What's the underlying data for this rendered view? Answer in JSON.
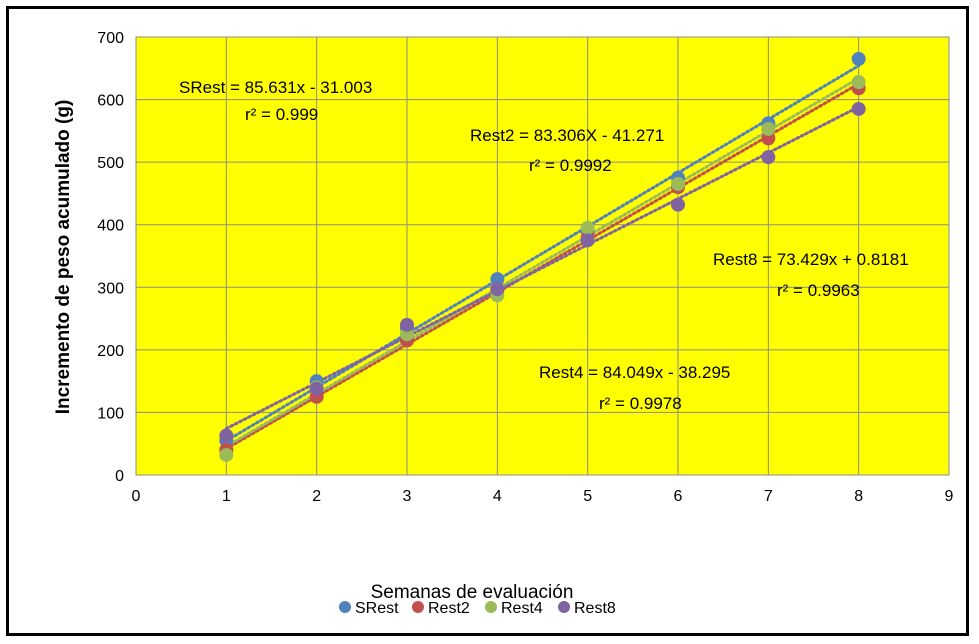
{
  "chart_data": {
    "type": "scatter",
    "title": "",
    "xlabel": "Semanas de evaluación",
    "ylabel": "Incremento de peso acumulado (g)",
    "xlim": [
      0,
      9
    ],
    "ylim": [
      0,
      700
    ],
    "xticks": [
      0,
      1,
      2,
      3,
      4,
      5,
      6,
      7,
      8,
      9
    ],
    "yticks": [
      0,
      100,
      200,
      300,
      400,
      500,
      600,
      700
    ],
    "grid": true,
    "plot_background": "#ffff00",
    "legend_position": "bottom",
    "series": [
      {
        "name": "SRest",
        "color": "#4f81bd",
        "x": [
          1,
          2,
          3,
          4,
          5,
          6,
          7,
          8
        ],
        "y": [
          55,
          150,
          235,
          313,
          390,
          475,
          562,
          665
        ],
        "trend": {
          "slope": 85.631,
          "intercept": -31.003
        }
      },
      {
        "name": "Rest2",
        "color": "#c0504d",
        "x": [
          1,
          2,
          3,
          4,
          5,
          6,
          7,
          8
        ],
        "y": [
          40,
          125,
          215,
          295,
          380,
          460,
          538,
          618
        ],
        "trend": {
          "slope": 83.306,
          "intercept": -41.271
        }
      },
      {
        "name": "Rest4",
        "color": "#9bbb59",
        "x": [
          1,
          2,
          3,
          4,
          5,
          6,
          7,
          8
        ],
        "y": [
          32,
          140,
          225,
          287,
          395,
          465,
          553,
          628
        ],
        "trend": {
          "slope": 84.049,
          "intercept": -38.295
        }
      },
      {
        "name": "Rest8",
        "color": "#8064a2",
        "x": [
          1,
          2,
          3,
          4,
          5,
          6,
          7,
          8
        ],
        "y": [
          63,
          138,
          240,
          297,
          375,
          432,
          508,
          585
        ],
        "trend": {
          "slope": 73.429,
          "intercept": 0.8181
        }
      }
    ],
    "annotations": [
      {
        "label": "SRest = 85.631x - 31.003",
        "r2": "r² = 0.999"
      },
      {
        "label": "Rest2 = 83.306X - 41.271",
        "r2": "r² = 0.9992"
      },
      {
        "label": "Rest8 = 73.429x + 0.8181",
        "r2": "r² = 0.9963"
      },
      {
        "label": "Rest4 = 84.049x - 38.295",
        "r2": "r² = 0.9978"
      }
    ]
  }
}
